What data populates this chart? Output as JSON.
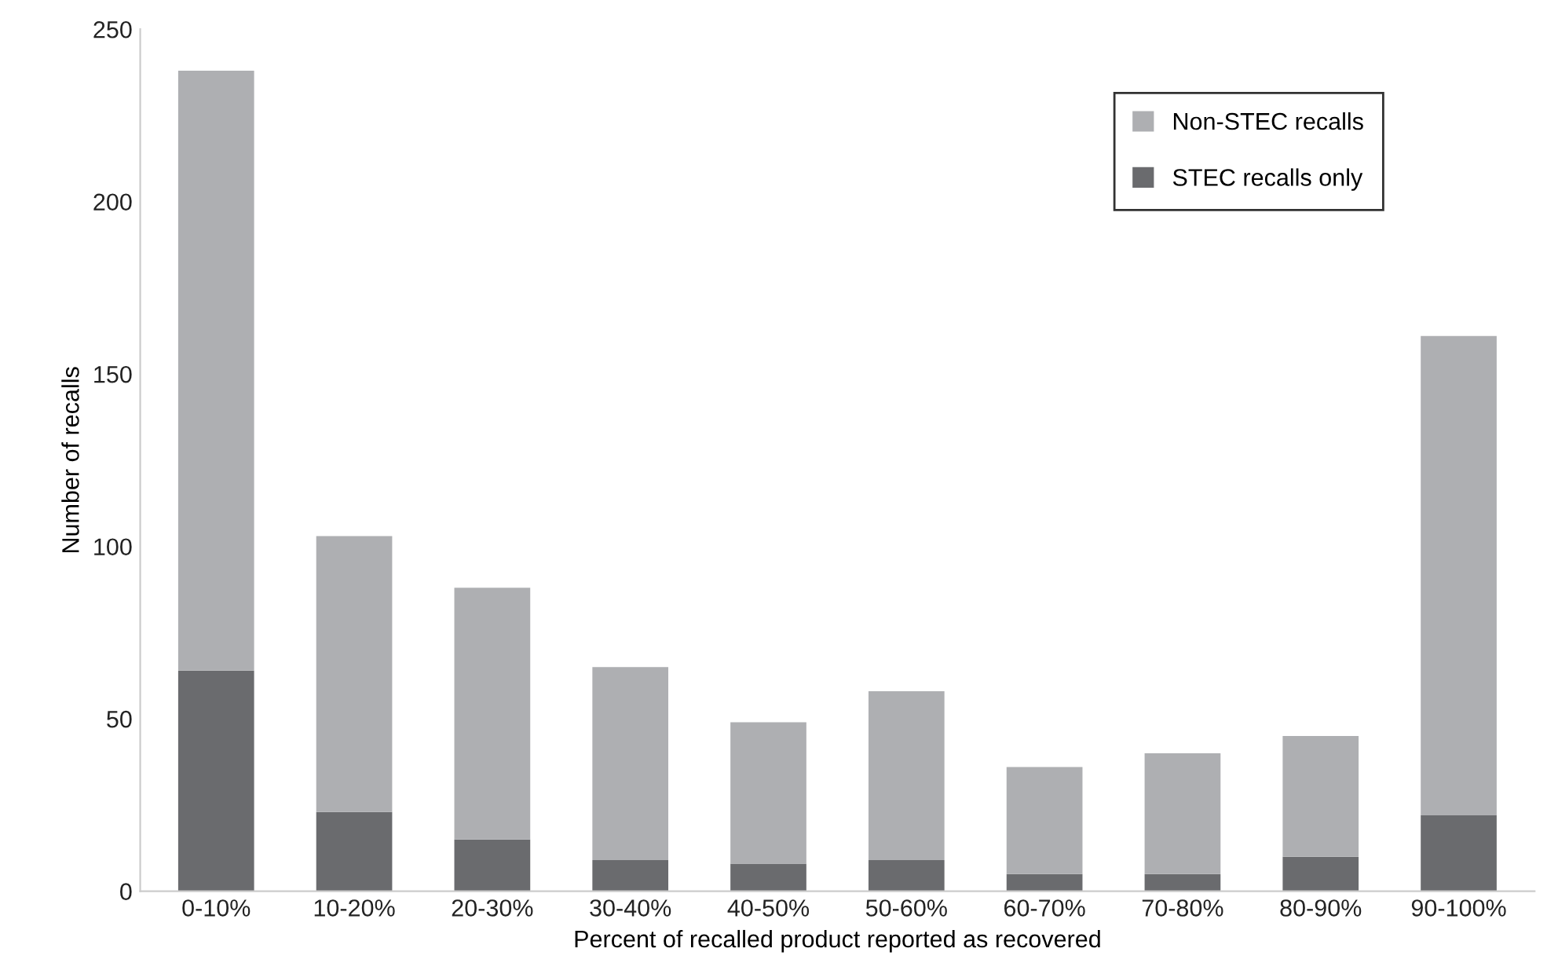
{
  "chart_data": {
    "type": "bar",
    "stacked": true,
    "xlabel": "Percent of recalled product reported as recovered",
    "ylabel": "Number of recalls",
    "categories": [
      "0-10%",
      "10-20%",
      "20-30%",
      "30-40%",
      "40-50%",
      "50-60%",
      "60-70%",
      "70-80%",
      "80-90%",
      "90-100%"
    ],
    "series": [
      {
        "name": "STEC recalls only",
        "color": "#6a6b6e",
        "values": [
          64,
          23,
          15,
          9,
          8,
          9,
          5,
          5,
          10,
          22
        ]
      },
      {
        "name": "Non-STEC recalls",
        "color": "#aeafb2",
        "values": [
          174,
          80,
          73,
          56,
          41,
          49,
          31,
          35,
          35,
          139
        ]
      }
    ],
    "ylim": [
      0,
      250
    ],
    "yticks": [
      0,
      50,
      100,
      150,
      200,
      250
    ],
    "grid": false,
    "legend": "top right"
  }
}
